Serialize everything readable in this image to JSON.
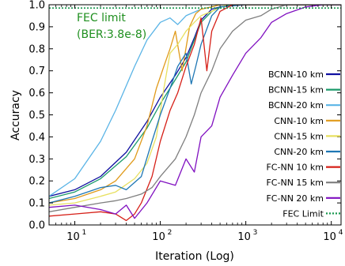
{
  "chart_data": {
    "type": "line",
    "xlabel": "Iteration (Log)",
    "ylabel": "Accuracy",
    "xscale": "log",
    "xlim": [
      5,
      13000
    ],
    "ylim": [
      0.0,
      1.0
    ],
    "xticks": [
      {
        "value": 10,
        "label": "10"
      },
      {
        "value": 100,
        "label": "10"
      },
      {
        "value": 1000,
        "label": "10"
      },
      {
        "value": 10000,
        "label": "10"
      }
    ],
    "xtick_exponents": [
      "1",
      "2",
      "3",
      "4"
    ],
    "yticks": [
      {
        "value": 0.0,
        "label": "0.0"
      },
      {
        "value": 0.1,
        "label": "0.1"
      },
      {
        "value": 0.2,
        "label": "0.2"
      },
      {
        "value": 0.3,
        "label": "0.3"
      },
      {
        "value": 0.4,
        "label": "0.4"
      },
      {
        "value": 0.5,
        "label": "0.5"
      },
      {
        "value": 0.6,
        "label": "0.6"
      },
      {
        "value": 0.7,
        "label": "0.7"
      },
      {
        "value": 0.8,
        "label": "0.8"
      },
      {
        "value": 0.9,
        "label": "0.9"
      },
      {
        "value": 1.0,
        "label": "1.0"
      }
    ],
    "grid": false,
    "legend_position": "bottom-right",
    "annotation": {
      "lines": [
        "FEC limit",
        "(BER:3.8e-8)"
      ],
      "color": "#1f8f1f"
    },
    "reference_line": {
      "name": "FEC Limit",
      "y": 0.985,
      "color": "#1a9850",
      "style": "dotted"
    },
    "series": [
      {
        "name": "BCNN-10 km",
        "color": "#1010a0",
        "x": [
          5,
          10,
          20,
          40,
          70,
          100,
          150,
          200,
          250,
          300,
          400,
          500,
          700,
          1000,
          2000,
          5000,
          13000
        ],
        "y": [
          0.13,
          0.16,
          0.22,
          0.33,
          0.47,
          0.58,
          0.68,
          0.76,
          0.85,
          0.93,
          0.98,
          0.99,
          1.0,
          1.0,
          1.0,
          1.0,
          1.0
        ]
      },
      {
        "name": "BCNN-15 km",
        "color": "#1a9a6a",
        "x": [
          5,
          10,
          20,
          40,
          70,
          100,
          150,
          200,
          250,
          300,
          400,
          500,
          700,
          1000,
          2000,
          5000,
          13000
        ],
        "y": [
          0.12,
          0.15,
          0.21,
          0.31,
          0.44,
          0.55,
          0.66,
          0.74,
          0.84,
          0.92,
          0.97,
          0.99,
          1.0,
          1.0,
          1.0,
          1.0,
          1.0
        ]
      },
      {
        "name": "BCNN-20 km",
        "color": "#5ab4e6",
        "x": [
          5,
          10,
          20,
          30,
          50,
          70,
          100,
          130,
          160,
          200,
          300,
          500,
          1000,
          13000
        ],
        "y": [
          0.13,
          0.21,
          0.38,
          0.52,
          0.72,
          0.84,
          0.92,
          0.94,
          0.91,
          0.95,
          0.98,
          1.0,
          1.0,
          1.0
        ]
      },
      {
        "name": "CNN-10 km",
        "color": "#e09a1a",
        "x": [
          5,
          10,
          20,
          30,
          50,
          70,
          90,
          110,
          130,
          150,
          180,
          220,
          260,
          300,
          400,
          500,
          700,
          1000,
          13000
        ],
        "y": [
          0.1,
          0.12,
          0.16,
          0.2,
          0.3,
          0.45,
          0.62,
          0.72,
          0.8,
          0.88,
          0.7,
          0.9,
          0.96,
          0.98,
          0.99,
          1.0,
          1.0,
          1.0,
          1.0
        ]
      },
      {
        "name": "CNN-15 km",
        "color": "#e8e060",
        "x": [
          5,
          10,
          20,
          30,
          50,
          70,
          90,
          110,
          130,
          160,
          200,
          250,
          300,
          400,
          600,
          1000,
          13000
        ],
        "y": [
          0.09,
          0.1,
          0.13,
          0.15,
          0.21,
          0.28,
          0.4,
          0.62,
          0.78,
          0.82,
          0.88,
          0.92,
          0.95,
          0.97,
          1.0,
          1.0,
          1.0
        ]
      },
      {
        "name": "CNN-20 km",
        "color": "#1f77b4",
        "x": [
          5,
          10,
          20,
          30,
          40,
          60,
          80,
          100,
          130,
          160,
          200,
          230,
          260,
          300,
          400,
          500,
          1000,
          13000
        ],
        "y": [
          0.1,
          0.13,
          0.17,
          0.18,
          0.16,
          0.22,
          0.38,
          0.5,
          0.62,
          0.72,
          0.78,
          0.64,
          0.72,
          0.82,
          0.95,
          0.99,
          1.0,
          1.0
        ]
      },
      {
        "name": "FC-NN 10 km",
        "color": "#d62018",
        "x": [
          5,
          10,
          20,
          30,
          40,
          50,
          60,
          80,
          100,
          130,
          160,
          200,
          250,
          300,
          350,
          400,
          500,
          700,
          1000,
          13000
        ],
        "y": [
          0.04,
          0.05,
          0.06,
          0.05,
          0.02,
          0.05,
          0.1,
          0.22,
          0.38,
          0.52,
          0.6,
          0.72,
          0.82,
          0.94,
          0.7,
          0.88,
          0.97,
          1.0,
          1.0,
          1.0
        ]
      },
      {
        "name": "FC-NN 15 km",
        "color": "#7f7f7f",
        "x": [
          5,
          10,
          20,
          30,
          40,
          60,
          80,
          100,
          150,
          200,
          250,
          300,
          400,
          500,
          700,
          1000,
          1500,
          2000,
          3000,
          13000
        ],
        "y": [
          0.06,
          0.08,
          0.1,
          0.11,
          0.12,
          0.14,
          0.17,
          0.22,
          0.3,
          0.4,
          0.5,
          0.6,
          0.7,
          0.8,
          0.88,
          0.93,
          0.95,
          0.98,
          1.0,
          1.0
        ]
      },
      {
        "name": "FC-NN 20 km",
        "color": "#8010c0",
        "x": [
          5,
          10,
          20,
          30,
          40,
          50,
          70,
          100,
          150,
          200,
          250,
          300,
          400,
          500,
          700,
          1000,
          1500,
          2000,
          3000,
          5000,
          8000,
          13000
        ],
        "y": [
          0.08,
          0.09,
          0.07,
          0.05,
          0.09,
          0.03,
          0.1,
          0.2,
          0.18,
          0.3,
          0.24,
          0.4,
          0.45,
          0.58,
          0.68,
          0.78,
          0.85,
          0.92,
          0.96,
          0.99,
          1.0,
          1.0
        ]
      }
    ]
  }
}
